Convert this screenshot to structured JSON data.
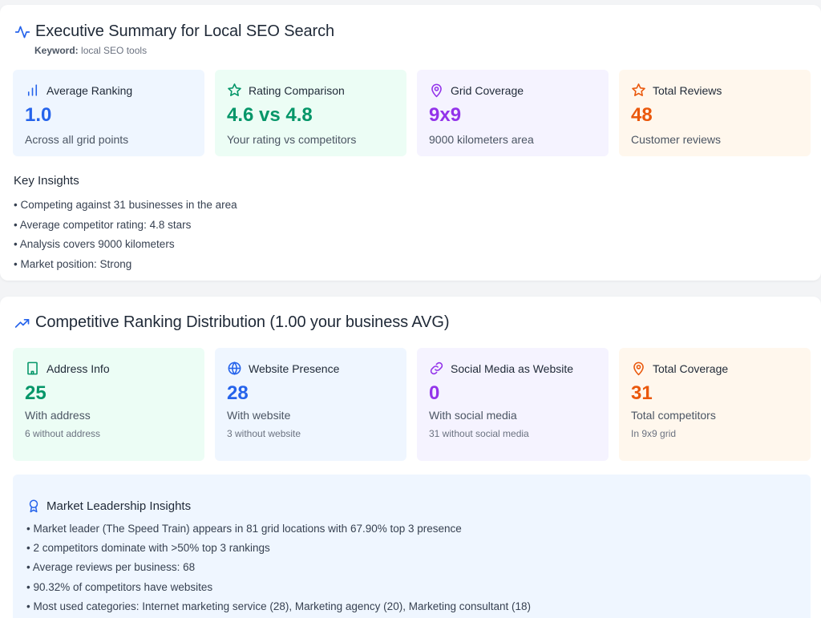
{
  "summary": {
    "title": "Executive Summary for Local SEO Search",
    "keyword_label": "Keyword:",
    "keyword_value": "local SEO tools",
    "cards": [
      {
        "icon": "bar-chart-icon",
        "label": "Average Ranking",
        "value": "1.0",
        "sub": "Across all grid points",
        "color": "#2563eb"
      },
      {
        "icon": "star-icon",
        "label": "Rating Comparison",
        "value": "4.6 vs 4.8",
        "sub": "Your rating vs competitors",
        "color": "#059669"
      },
      {
        "icon": "map-pin-icon",
        "label": "Grid Coverage",
        "value": "9x9",
        "sub": "9000 kilometers area",
        "color": "#9333ea"
      },
      {
        "icon": "star-icon",
        "label": "Total Reviews",
        "value": "48",
        "sub": "Customer reviews",
        "color": "#ea580c"
      }
    ],
    "insights_title": "Key Insights",
    "insights": [
      "Competing against 31 businesses in the area",
      "Average competitor rating: 4.8 stars",
      "Analysis covers 9000 kilometers",
      "Market position: Strong"
    ]
  },
  "distribution": {
    "title": "Competitive Ranking Distribution (1.00 your business AVG)",
    "cards": [
      {
        "icon": "building-icon",
        "label": "Address Info",
        "value": "25",
        "sub": "With address",
        "note": "6 without address",
        "color": "#059669"
      },
      {
        "icon": "globe-icon",
        "label": "Website Presence",
        "value": "28",
        "sub": "With website",
        "note": "3 without website",
        "color": "#2563eb"
      },
      {
        "icon": "link-icon",
        "label": "Social Media as Website",
        "value": "0",
        "sub": "With social media",
        "note": "31 without social media",
        "color": "#9333ea"
      },
      {
        "icon": "map-pin-icon",
        "label": "Total Coverage",
        "value": "31",
        "sub": "Total competitors",
        "note": "In 9x9 grid",
        "color": "#ea580c"
      }
    ],
    "leadership_title": "Market Leadership Insights",
    "leadership": [
      "Market leader (The Speed Train) appears in 81 grid locations with 67.90% top 3 presence",
      "2 competitors dominate with >50% top 3 rankings",
      "Average reviews per business: 68",
      "90.32% of competitors have websites",
      "Most used categories: Internet marketing service (28), Marketing agency (20), Marketing consultant (18)"
    ]
  }
}
